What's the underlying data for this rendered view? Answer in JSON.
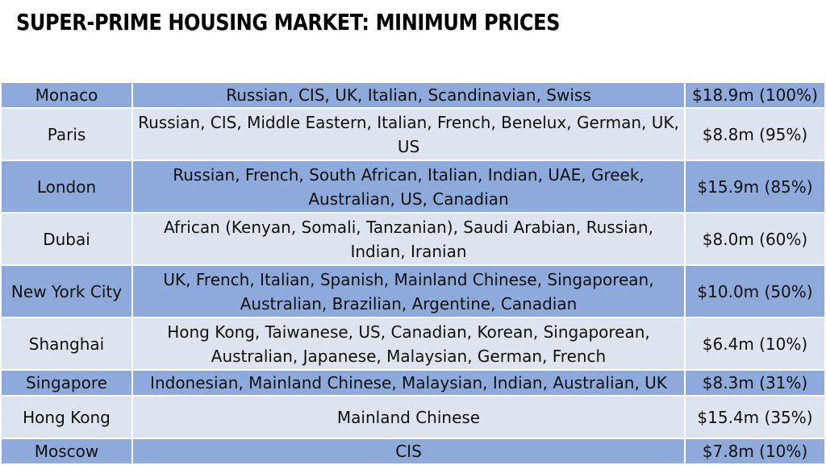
{
  "title": "SUPER-PRIME HOUSING MARKET: MINIMUM PRICES",
  "rows": [
    {
      "city": "Monaco",
      "buyers": "Russian, CIS, UK, Italian, Scandinavian, Swiss",
      "price": "$18.9m (100%)",
      "shade": "dark"
    },
    {
      "city": "Paris",
      "buyers": "Russian, CIS, Middle Eastern, Italian, French, Benelux, German, UK, US",
      "price": "$8.8m (95%)",
      "shade": "light"
    },
    {
      "city": "London",
      "buyers": "Russian, French, South African, Italian, Indian, UAE, Greek, Australian, US, Canadian",
      "price": "$15.9m (85%)",
      "shade": "dark"
    },
    {
      "city": "Dubai",
      "buyers": "African (Kenyan, Somali, Tanzanian), Saudi Arabian, Russian, Indian, Iranian",
      "price": "$8.0m (60%)",
      "shade": "light"
    },
    {
      "city": "New York City",
      "buyers": "UK, French, Italian, Spanish, Mainland Chinese, Singaporean, Australian, Brazilian, Argentine, Canadian",
      "price": "$10.0m (50%)",
      "shade": "dark"
    },
    {
      "city": "Shanghai",
      "buyers": "Hong Kong, Taiwanese, US, Canadian, Korean, Singaporean, Australian, Japanese, Malaysian, German, French",
      "price": "$6.4m (10%)",
      "shade": "light"
    },
    {
      "city": "Singapore",
      "buyers": "Indonesian, Mainland Chinese, Malaysian, Indian, Australian, UK",
      "price": "$8.3m (31%)",
      "shade": "dark"
    },
    {
      "city": "Hong Kong",
      "buyers": "Mainland Chinese",
      "price": "$15.4m (35%)",
      "shade": "light"
    },
    {
      "city": "Moscow",
      "buyers": "CIS",
      "price": "$7.8m (10%)",
      "shade": "dark"
    }
  ],
  "colors": {
    "dark_row": "#8eaadb",
    "light_row": "#dde4f0",
    "background": "#ffffff"
  }
}
